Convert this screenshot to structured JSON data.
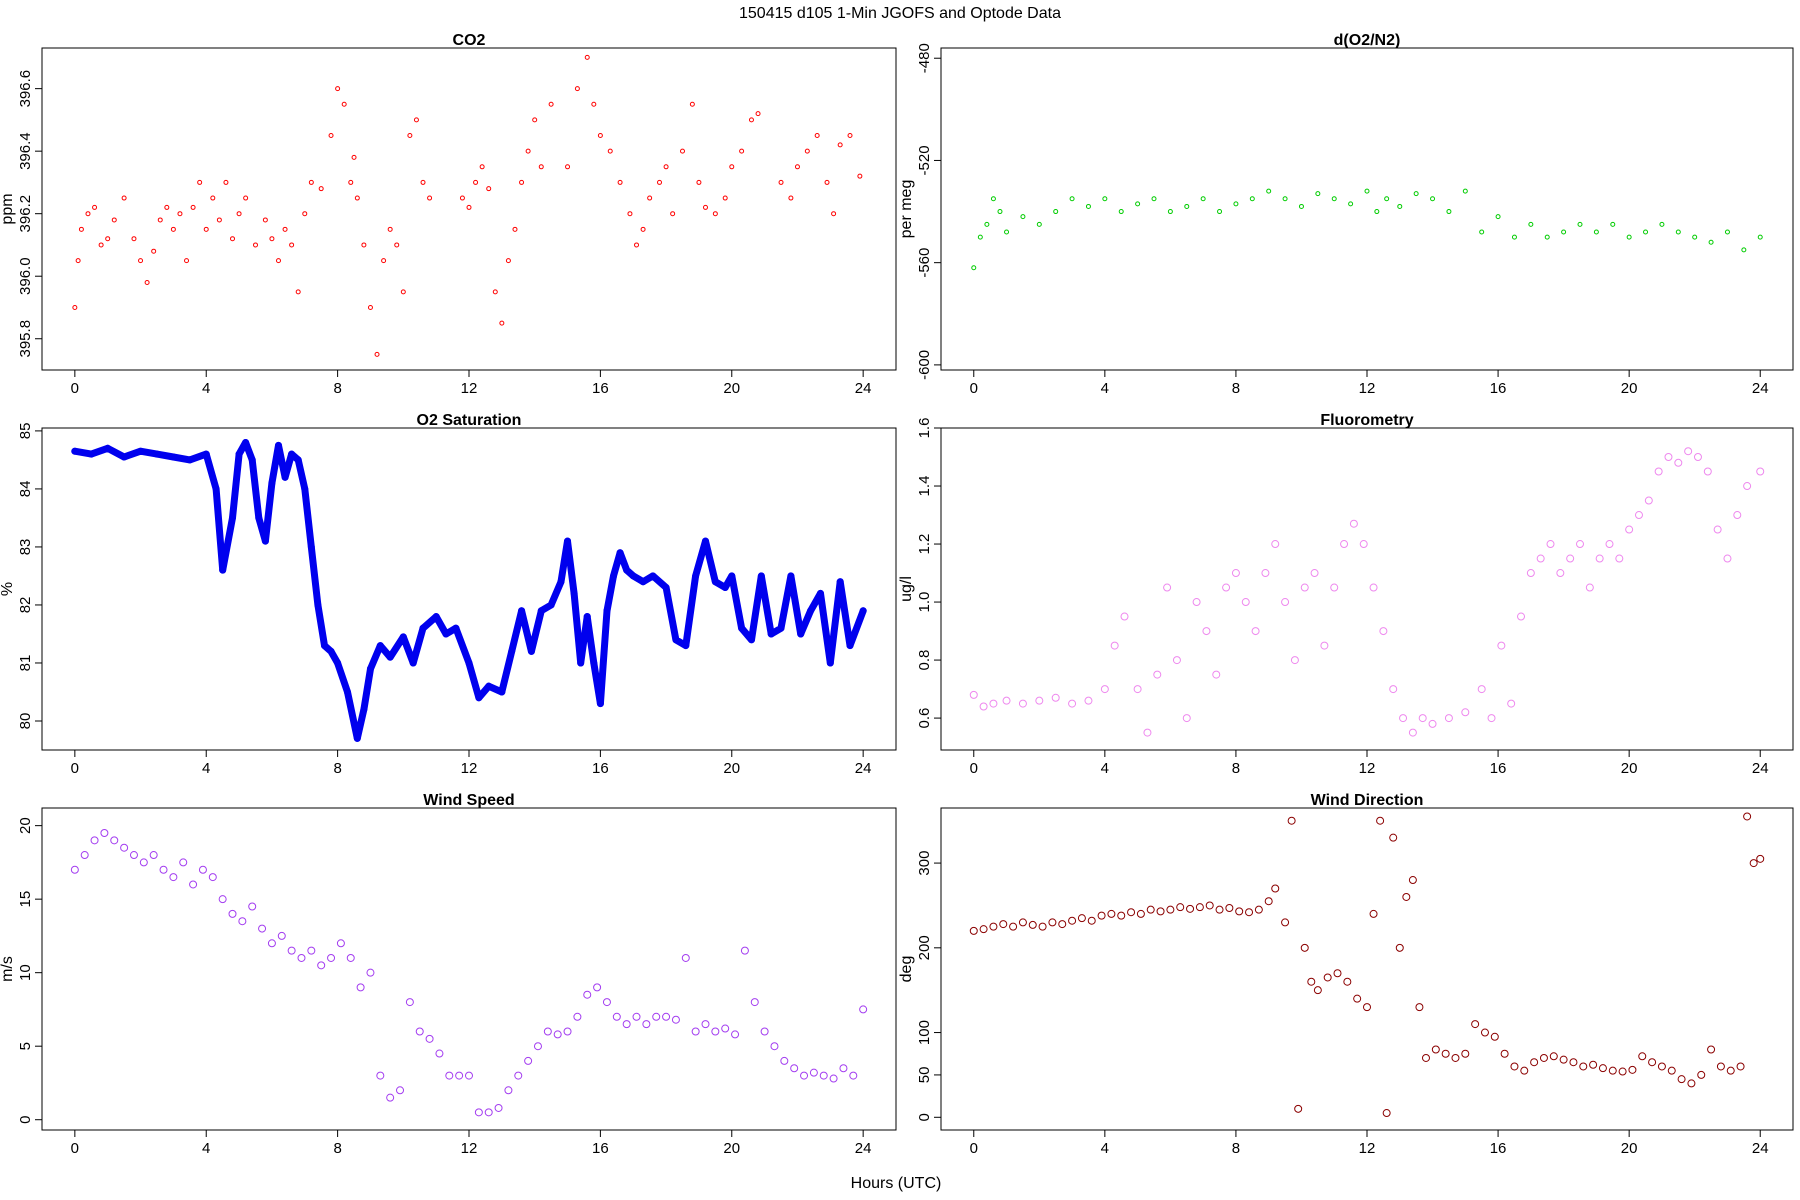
{
  "figure": {
    "title": "150415   d105   1-Min  JGOFS and Optode Data",
    "xlabel": "Hours (UTC)"
  },
  "chart_data": [
    {
      "id": "co2",
      "type": "scatter",
      "title": "CO2",
      "ylabel": "ppm",
      "color": "#ff0000",
      "xlim": [
        -1,
        25
      ],
      "ylim": [
        395.7,
        396.73
      ],
      "xticks": [
        0,
        4,
        8,
        12,
        16,
        20,
        24
      ],
      "yticks": [
        395.8,
        396.0,
        396.2,
        396.4,
        396.6
      ],
      "ytick_labels": [
        "395.8",
        "396.0",
        "396.2",
        "396.4",
        "396.6"
      ],
      "x": [
        0.0,
        0.1,
        0.2,
        0.4,
        0.6,
        0.8,
        1.0,
        1.2,
        1.5,
        1.8,
        2.0,
        2.2,
        2.4,
        2.6,
        2.8,
        3.0,
        3.2,
        3.4,
        3.6,
        3.8,
        4.0,
        4.2,
        4.4,
        4.6,
        4.8,
        5.0,
        5.2,
        5.5,
        5.8,
        6.0,
        6.2,
        6.4,
        6.6,
        6.8,
        7.0,
        7.2,
        7.5,
        7.8,
        8.0,
        8.2,
        8.4,
        8.5,
        8.6,
        8.8,
        9.0,
        9.2,
        9.4,
        9.6,
        9.8,
        10.0,
        10.2,
        10.4,
        10.6,
        10.8,
        11.8,
        12.0,
        12.2,
        12.4,
        12.6,
        12.8,
        13.0,
        13.2,
        13.4,
        13.6,
        13.8,
        14.0,
        14.2,
        14.5,
        15.0,
        15.3,
        15.6,
        15.8,
        16.0,
        16.3,
        16.6,
        16.9,
        17.1,
        17.3,
        17.5,
        17.8,
        18.0,
        18.2,
        18.5,
        18.8,
        19.0,
        19.2,
        19.5,
        19.8,
        20.0,
        20.3,
        20.6,
        20.8,
        21.5,
        21.8,
        22.0,
        22.3,
        22.6,
        22.9,
        23.1,
        23.3,
        23.6,
        23.9
      ],
      "y": [
        395.9,
        396.05,
        396.15,
        396.2,
        396.22,
        396.1,
        396.12,
        396.18,
        396.25,
        396.12,
        396.05,
        395.98,
        396.08,
        396.18,
        396.22,
        396.15,
        396.2,
        396.05,
        396.22,
        396.3,
        396.15,
        396.25,
        396.18,
        396.3,
        396.12,
        396.2,
        396.25,
        396.1,
        396.18,
        396.12,
        396.05,
        396.15,
        396.1,
        395.95,
        396.2,
        396.3,
        396.28,
        396.45,
        396.6,
        396.55,
        396.3,
        396.38,
        396.25,
        396.1,
        395.9,
        395.75,
        396.05,
        396.15,
        396.1,
        395.95,
        396.45,
        396.5,
        396.3,
        396.25,
        396.25,
        396.22,
        396.3,
        396.35,
        396.28,
        395.95,
        395.85,
        396.05,
        396.15,
        396.3,
        396.4,
        396.5,
        396.35,
        396.55,
        396.35,
        396.6,
        396.7,
        396.55,
        396.45,
        396.4,
        396.3,
        396.2,
        396.1,
        396.15,
        396.25,
        396.3,
        396.35,
        396.2,
        396.4,
        396.55,
        396.3,
        396.22,
        396.2,
        396.25,
        396.35,
        396.4,
        396.5,
        396.52,
        396.3,
        396.25,
        396.35,
        396.4,
        396.45,
        396.3,
        396.2,
        396.42,
        396.45,
        396.32
      ]
    },
    {
      "id": "do2n2",
      "type": "scatter",
      "title": "d(O2/N2)",
      "ylabel": "per meg",
      "color": "#00cc00",
      "xlim": [
        -1,
        25
      ],
      "ylim": [
        -602,
        -476
      ],
      "xticks": [
        0,
        4,
        8,
        12,
        16,
        20,
        24
      ],
      "yticks": [
        -600,
        -560,
        -520,
        -480
      ],
      "ytick_labels": [
        "-600",
        "-560",
        "-520",
        "-480"
      ],
      "x": [
        0.0,
        0.2,
        0.4,
        0.6,
        0.8,
        1.0,
        1.5,
        2.0,
        2.5,
        3.0,
        3.5,
        4.0,
        4.5,
        5.0,
        5.5,
        6.0,
        6.5,
        7.0,
        7.5,
        8.0,
        8.5,
        9.0,
        9.5,
        10.0,
        10.5,
        11.0,
        11.5,
        12.0,
        12.3,
        12.6,
        13.0,
        13.5,
        14.0,
        14.5,
        15.0,
        15.5,
        16.0,
        16.5,
        17.0,
        17.5,
        18.0,
        18.5,
        19.0,
        19.5,
        20.0,
        20.5,
        21.0,
        21.5,
        22.0,
        22.5,
        23.0,
        23.5,
        24.0
      ],
      "y": [
        -562,
        -550,
        -545,
        -535,
        -540,
        -548,
        -542,
        -545,
        -540,
        -535,
        -538,
        -535,
        -540,
        -537,
        -535,
        -540,
        -538,
        -535,
        -540,
        -537,
        -535,
        -532,
        -535,
        -538,
        -533,
        -535,
        -537,
        -532,
        -540,
        -535,
        -538,
        -533,
        -535,
        -540,
        -532,
        -548,
        -542,
        -550,
        -545,
        -550,
        -548,
        -545,
        -548,
        -545,
        -550,
        -548,
        -545,
        -548,
        -550,
        -552,
        -548,
        -555,
        -550
      ]
    },
    {
      "id": "o2sat",
      "type": "line",
      "title": "O2 Saturation",
      "ylabel": "%",
      "color": "#0000ee",
      "xlim": [
        -1,
        25
      ],
      "ylim": [
        79.5,
        85.05
      ],
      "xticks": [
        0,
        4,
        8,
        12,
        16,
        20,
        24
      ],
      "yticks": [
        80,
        81,
        82,
        83,
        84,
        85
      ],
      "ytick_labels": [
        "80",
        "81",
        "82",
        "83",
        "84",
        "85"
      ],
      "x": [
        0,
        0.5,
        1.0,
        1.5,
        2.0,
        2.5,
        3.0,
        3.5,
        4.0,
        4.3,
        4.5,
        4.8,
        5.0,
        5.2,
        5.4,
        5.6,
        5.8,
        6.0,
        6.2,
        6.4,
        6.6,
        6.8,
        7.0,
        7.2,
        7.4,
        7.6,
        7.8,
        8.0,
        8.3,
        8.6,
        8.8,
        9.0,
        9.3,
        9.6,
        10.0,
        10.3,
        10.6,
        11.0,
        11.3,
        11.6,
        12.0,
        12.3,
        12.6,
        13.0,
        13.3,
        13.6,
        13.9,
        14.2,
        14.5,
        14.8,
        15.0,
        15.2,
        15.4,
        15.6,
        15.8,
        16.0,
        16.2,
        16.4,
        16.6,
        16.8,
        17.0,
        17.3,
        17.6,
        18.0,
        18.3,
        18.6,
        18.9,
        19.2,
        19.5,
        19.8,
        20.0,
        20.3,
        20.6,
        20.9,
        21.2,
        21.5,
        21.8,
        22.1,
        22.4,
        22.7,
        23.0,
        23.3,
        23.6,
        24.0
      ],
      "y": [
        84.65,
        84.6,
        84.7,
        84.55,
        84.65,
        84.6,
        84.55,
        84.5,
        84.6,
        84.0,
        82.6,
        83.5,
        84.6,
        84.8,
        84.5,
        83.5,
        83.1,
        84.1,
        84.75,
        84.2,
        84.6,
        84.5,
        84.0,
        83.0,
        82.0,
        81.3,
        81.2,
        81.0,
        80.5,
        79.7,
        80.2,
        80.9,
        81.3,
        81.1,
        81.45,
        81.0,
        81.6,
        81.8,
        81.5,
        81.6,
        81.0,
        80.4,
        80.6,
        80.5,
        81.2,
        81.9,
        81.2,
        81.9,
        82.0,
        82.4,
        83.1,
        82.2,
        81.0,
        81.8,
        81.0,
        80.3,
        81.9,
        82.5,
        82.9,
        82.6,
        82.5,
        82.4,
        82.5,
        82.3,
        81.4,
        81.3,
        82.5,
        83.1,
        82.4,
        82.3,
        82.5,
        81.6,
        81.4,
        82.5,
        81.5,
        81.6,
        82.5,
        81.5,
        81.9,
        82.2,
        81.0,
        82.4,
        81.3,
        81.9
      ]
    },
    {
      "id": "fluor",
      "type": "scatter",
      "title": "Fluorometry",
      "ylabel": "ug/l",
      "color": "#ee88ee",
      "xlim": [
        -1,
        25
      ],
      "ylim": [
        0.49,
        1.6
      ],
      "xticks": [
        0,
        4,
        8,
        12,
        16,
        20,
        24
      ],
      "yticks": [
        0.6,
        0.8,
        1.0,
        1.2,
        1.4,
        1.6
      ],
      "ytick_labels": [
        "0.6",
        "0.8",
        "1.0",
        "1.2",
        "1.4",
        "1.6"
      ],
      "x": [
        0,
        0.3,
        0.6,
        1.0,
        1.5,
        2.0,
        2.5,
        3.0,
        3.5,
        4.0,
        4.3,
        4.6,
        5.0,
        5.3,
        5.6,
        5.9,
        6.2,
        6.5,
        6.8,
        7.1,
        7.4,
        7.7,
        8.0,
        8.3,
        8.6,
        8.9,
        9.2,
        9.5,
        9.8,
        10.1,
        10.4,
        10.7,
        11.0,
        11.3,
        11.6,
        11.9,
        12.2,
        12.5,
        12.8,
        13.1,
        13.4,
        13.7,
        14.0,
        14.5,
        15.0,
        15.5,
        15.8,
        16.1,
        16.4,
        16.7,
        17.0,
        17.3,
        17.6,
        17.9,
        18.2,
        18.5,
        18.8,
        19.1,
        19.4,
        19.7,
        20.0,
        20.3,
        20.6,
        20.9,
        21.2,
        21.5,
        21.8,
        22.1,
        22.4,
        22.7,
        23.0,
        23.3,
        23.6,
        24.0
      ],
      "y": [
        0.68,
        0.64,
        0.65,
        0.66,
        0.65,
        0.66,
        0.67,
        0.65,
        0.66,
        0.7,
        0.85,
        0.95,
        0.7,
        0.55,
        0.75,
        1.05,
        0.8,
        0.6,
        1.0,
        0.9,
        0.75,
        1.05,
        1.1,
        1.0,
        0.9,
        1.1,
        1.2,
        1.0,
        0.8,
        1.05,
        1.1,
        0.85,
        1.05,
        1.2,
        1.27,
        1.2,
        1.05,
        0.9,
        0.7,
        0.6,
        0.55,
        0.6,
        0.58,
        0.6,
        0.62,
        0.7,
        0.6,
        0.85,
        0.65,
        0.95,
        1.1,
        1.15,
        1.2,
        1.1,
        1.15,
        1.2,
        1.05,
        1.15,
        1.2,
        1.15,
        1.25,
        1.3,
        1.35,
        1.45,
        1.5,
        1.48,
        1.52,
        1.5,
        1.45,
        1.25,
        1.15,
        1.3,
        1.4,
        1.45
      ]
    },
    {
      "id": "wspd",
      "type": "scatter",
      "title": "Wind Speed",
      "ylabel": "m/s",
      "color": "#a33df0",
      "xlim": [
        -1,
        25
      ],
      "ylim": [
        -0.7,
        21.2
      ],
      "xticks": [
        0,
        4,
        8,
        12,
        16,
        20,
        24
      ],
      "yticks": [
        0,
        5,
        10,
        15,
        20
      ],
      "ytick_labels": [
        "0",
        "5",
        "10",
        "15",
        "20"
      ],
      "x": [
        0,
        0.3,
        0.6,
        0.9,
        1.2,
        1.5,
        1.8,
        2.1,
        2.4,
        2.7,
        3.0,
        3.3,
        3.6,
        3.9,
        4.2,
        4.5,
        4.8,
        5.1,
        5.4,
        5.7,
        6.0,
        6.3,
        6.6,
        6.9,
        7.2,
        7.5,
        7.8,
        8.1,
        8.4,
        8.7,
        9.0,
        9.3,
        9.6,
        9.9,
        10.2,
        10.5,
        10.8,
        11.1,
        11.4,
        11.7,
        12.0,
        12.3,
        12.6,
        12.9,
        13.2,
        13.5,
        13.8,
        14.1,
        14.4,
        14.7,
        15.0,
        15.3,
        15.6,
        15.9,
        16.2,
        16.5,
        16.8,
        17.1,
        17.4,
        17.7,
        18.0,
        18.3,
        18.6,
        18.9,
        19.2,
        19.5,
        19.8,
        20.1,
        20.4,
        20.7,
        21.0,
        21.3,
        21.6,
        21.9,
        22.2,
        22.5,
        22.8,
        23.1,
        23.4,
        23.7,
        24.0
      ],
      "y": [
        17,
        18,
        19,
        19.5,
        19,
        18.5,
        18,
        17.5,
        18,
        17,
        16.5,
        17.5,
        16,
        17,
        16.5,
        15,
        14,
        13.5,
        14.5,
        13,
        12,
        12.5,
        11.5,
        11,
        11.5,
        10.5,
        11,
        12,
        11,
        9,
        10,
        3,
        1.5,
        2,
        8,
        6,
        5.5,
        4.5,
        3,
        3,
        3,
        0.5,
        0.5,
        0.8,
        2,
        3,
        4,
        5,
        6,
        5.8,
        6,
        7,
        8.5,
        9,
        8,
        7,
        6.5,
        7,
        6.5,
        7,
        7,
        6.8,
        11,
        6,
        6.5,
        6,
        6.2,
        5.8,
        11.5,
        8,
        6,
        5,
        4,
        3.5,
        3,
        3.2,
        3,
        2.8,
        3.5,
        3,
        7.5
      ]
    },
    {
      "id": "wdir",
      "type": "scatter",
      "title": "Wind Direction",
      "ylabel": "deg",
      "color": "#8b0000",
      "xlim": [
        -1,
        25
      ],
      "ylim": [
        -15,
        365
      ],
      "xticks": [
        0,
        4,
        8,
        12,
        16,
        20,
        24
      ],
      "yticks": [
        0,
        50,
        100,
        200,
        300
      ],
      "ytick_labels": [
        "0",
        "50",
        "100",
        "200",
        "300"
      ],
      "x": [
        0,
        0.3,
        0.6,
        0.9,
        1.2,
        1.5,
        1.8,
        2.1,
        2.4,
        2.7,
        3.0,
        3.3,
        3.6,
        3.9,
        4.2,
        4.5,
        4.8,
        5.1,
        5.4,
        5.7,
        6.0,
        6.3,
        6.6,
        6.9,
        7.2,
        7.5,
        7.8,
        8.1,
        8.4,
        8.7,
        9.0,
        9.2,
        9.5,
        9.7,
        9.9,
        10.1,
        10.3,
        10.5,
        10.8,
        11.1,
        11.4,
        11.7,
        12.0,
        12.2,
        12.4,
        12.6,
        12.8,
        13.0,
        13.2,
        13.4,
        13.6,
        13.8,
        14.1,
        14.4,
        14.7,
        15.0,
        15.3,
        15.6,
        15.9,
        16.2,
        16.5,
        16.8,
        17.1,
        17.4,
        17.7,
        18.0,
        18.3,
        18.6,
        18.9,
        19.2,
        19.5,
        19.8,
        20.1,
        20.4,
        20.7,
        21.0,
        21.3,
        21.6,
        21.9,
        22.2,
        22.5,
        22.8,
        23.1,
        23.4,
        23.6,
        23.8,
        24.0
      ],
      "y": [
        220,
        222,
        225,
        228,
        225,
        230,
        227,
        225,
        230,
        228,
        232,
        235,
        232,
        238,
        240,
        238,
        242,
        240,
        245,
        243,
        245,
        248,
        246,
        248,
        250,
        245,
        247,
        243,
        242,
        245,
        255,
        270,
        230,
        350,
        10,
        200,
        160,
        150,
        165,
        170,
        160,
        140,
        130,
        240,
        350,
        5,
        330,
        200,
        260,
        280,
        130,
        70,
        80,
        75,
        70,
        75,
        110,
        100,
        95,
        75,
        60,
        55,
        65,
        70,
        72,
        68,
        65,
        60,
        62,
        58,
        55,
        54,
        56,
        72,
        65,
        60,
        55,
        45,
        40,
        50,
        80,
        60,
        55,
        60,
        355,
        300,
        305
      ]
    }
  ]
}
